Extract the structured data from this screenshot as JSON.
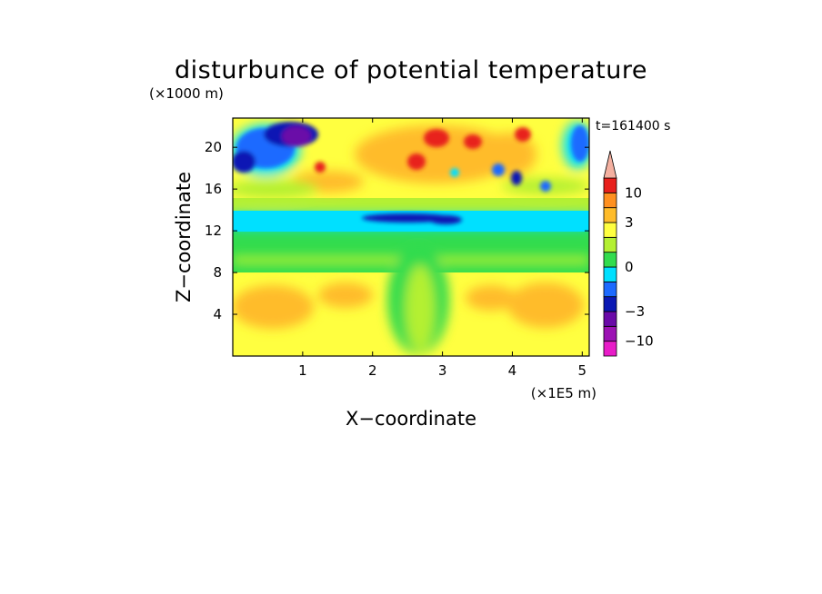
{
  "chart_data": {
    "type": "heatmap",
    "title": "disturbunce of potential temperature",
    "time_label": "t=161400 s",
    "xlabel": "X−coordinate",
    "ylabel": "Z−coordinate",
    "x_unit": "(×1E5 m)",
    "y_unit": "(×1000 m)",
    "xlim": [
      0,
      5.1
    ],
    "ylim": [
      0,
      22.8
    ],
    "x_ticks": [
      {
        "value": 1,
        "label": "1"
      },
      {
        "value": 2,
        "label": "2"
      },
      {
        "value": 3,
        "label": "3"
      },
      {
        "value": 4,
        "label": "4"
      },
      {
        "value": 5,
        "label": "5"
      }
    ],
    "y_ticks": [
      {
        "value": 4,
        "label": "4"
      },
      {
        "value": 8,
        "label": "8"
      },
      {
        "value": 12,
        "label": "12"
      },
      {
        "value": 16,
        "label": "16"
      },
      {
        "value": 20,
        "label": "20"
      }
    ],
    "colorbar": {
      "levels": [
        -15,
        -10,
        -5,
        -3,
        -2,
        -1,
        0,
        1,
        2,
        3,
        5,
        10,
        15
      ],
      "colors": [
        "#e81cc8",
        "#9c12b4",
        "#6a0aa8",
        "#0a18b4",
        "#1c6aff",
        "#00e0ff",
        "#32dc4e",
        "#b4f032",
        "#ffff40",
        "#ffbc2a",
        "#ff9020",
        "#e8201c",
        "#f08a78",
        "#f4b0a0"
      ],
      "extend": "both",
      "labels": [
        {
          "value": 10,
          "label": "10"
        },
        {
          "value": 3,
          "label": "3"
        },
        {
          "value": 0,
          "label": "0"
        },
        {
          "value": -3,
          "label": "−3"
        },
        {
          "value": -10,
          "label": "−10"
        }
      ]
    },
    "grid": false
  }
}
